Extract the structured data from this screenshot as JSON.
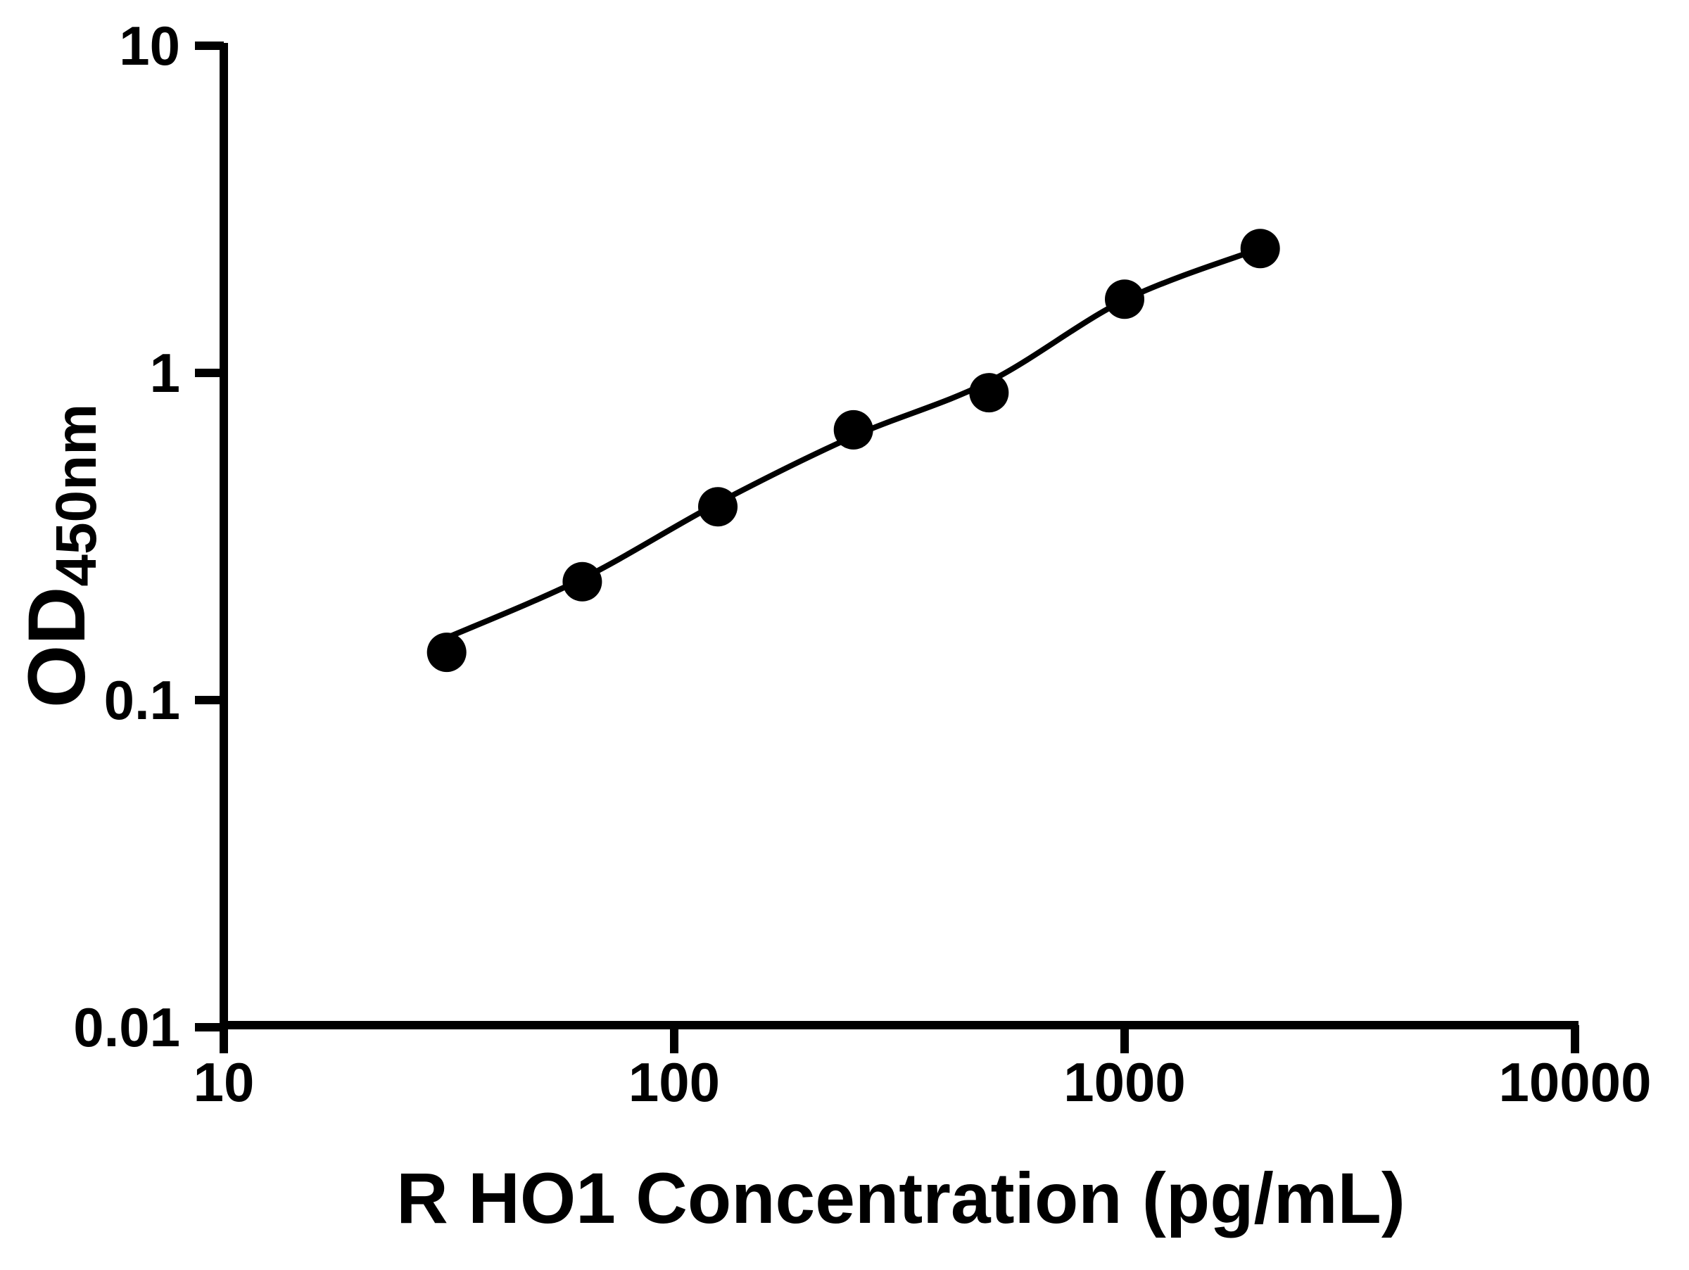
{
  "colors": {
    "foreground": "#000000",
    "background": "#ffffff"
  },
  "chart_data": {
    "type": "scatter",
    "title": "",
    "xlabel": "R HO1 Concentration (pg/mL)",
    "ylabel_main": "OD",
    "ylabel_sub": "450nm",
    "xscale": "log",
    "yscale": "log",
    "xlim": [
      10,
      10000
    ],
    "ylim": [
      0.01,
      10
    ],
    "grid": false,
    "legend_position": "none",
    "x_ticks": [
      {
        "value": 10,
        "label": "10"
      },
      {
        "value": 100,
        "label": "100"
      },
      {
        "value": 1000,
        "label": "1000"
      },
      {
        "value": 10000,
        "label": "10000"
      }
    ],
    "y_ticks": [
      {
        "value": 10,
        "label": "10"
      },
      {
        "value": 1,
        "label": "1"
      },
      {
        "value": 0.1,
        "label": "0.1"
      },
      {
        "value": 0.01,
        "label": "0.01"
      }
    ],
    "series": [
      {
        "name": "standard-data-points",
        "type": "scatter",
        "marker": "filled-circle",
        "marker_color": "#000000",
        "points": [
          [
            31.25,
            0.14
          ],
          [
            62.5,
            0.23
          ],
          [
            125,
            0.39
          ],
          [
            250,
            0.67
          ],
          [
            500,
            0.87
          ],
          [
            1000,
            1.68
          ],
          [
            2000,
            2.4
          ]
        ]
      },
      {
        "name": "fitted-standard-curve",
        "type": "line",
        "line_color": "#000000",
        "points": [
          [
            31.25,
            0.155
          ],
          [
            62.5,
            0.235
          ],
          [
            125,
            0.4
          ],
          [
            250,
            0.64
          ],
          [
            500,
            0.94
          ],
          [
            1000,
            1.67
          ],
          [
            2000,
            2.4
          ]
        ]
      }
    ]
  }
}
